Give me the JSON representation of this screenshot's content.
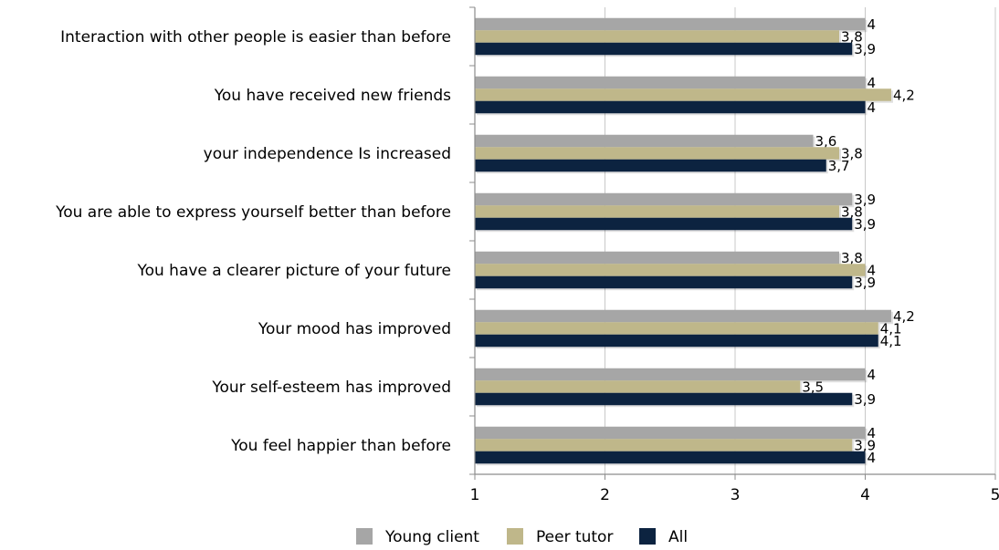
{
  "chart_data": {
    "type": "bar",
    "orientation": "horizontal",
    "categories": [
      "Interaction with other people is easier than before",
      "You have received new friends",
      "your independence Is increased",
      "You are able to express yourself better than before",
      "You have a clearer picture of your future",
      "Your mood has improved",
      "Your self-esteem has improved",
      "You feel happier than before"
    ],
    "series": [
      {
        "name": "Young client",
        "color": "#a6a6a6",
        "values": [
          4,
          4,
          3.6,
          3.9,
          3.8,
          4.2,
          4,
          4
        ],
        "labels": [
          "4",
          "4",
          "3,6",
          "3,9",
          "3,8",
          "4,2",
          "4",
          "4"
        ]
      },
      {
        "name": "Peer tutor",
        "color": "#bfb78a",
        "values": [
          3.8,
          4.2,
          3.8,
          3.8,
          4,
          4.1,
          3.5,
          3.9
        ],
        "labels": [
          "3,8",
          "4,2",
          "3,8",
          "3,8",
          "4",
          "4,1",
          "3,5",
          "3,9"
        ]
      },
      {
        "name": "All",
        "color": "#0c2340",
        "values": [
          3.9,
          4,
          3.7,
          3.9,
          3.9,
          4.1,
          3.9,
          4
        ],
        "labels": [
          "3,9",
          "4",
          "3,7",
          "3,9",
          "3,9",
          "4,1",
          "3,9",
          "4"
        ]
      }
    ],
    "xlim": [
      1,
      5
    ],
    "xticks": [
      "1",
      "2",
      "3",
      "4",
      "5"
    ],
    "title": "",
    "xlabel": "",
    "ylabel": "",
    "grid": true,
    "legend": "bottom"
  }
}
